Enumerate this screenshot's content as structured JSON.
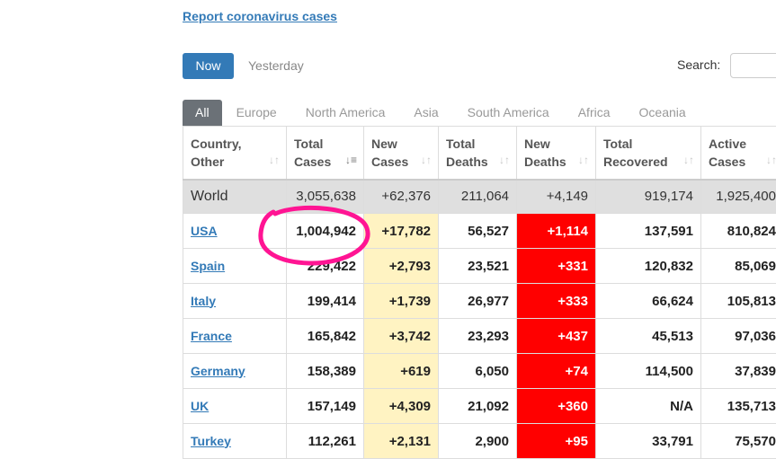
{
  "header": {
    "report_link": "Report coronavirus cases"
  },
  "toolbar": {
    "now_label": "Now",
    "yesterday_label": "Yesterday"
  },
  "search": {
    "label": "Search:",
    "value": "",
    "placeholder": ""
  },
  "tabs": [
    {
      "label": "All"
    },
    {
      "label": "Europe"
    },
    {
      "label": "North America"
    },
    {
      "label": "Asia"
    },
    {
      "label": "South America"
    },
    {
      "label": "Africa"
    },
    {
      "label": "Oceania"
    }
  ],
  "table": {
    "columns": [
      {
        "line1": "Country,",
        "line2": "Other"
      },
      {
        "line1": "Total",
        "line2": "Cases"
      },
      {
        "line1": "New",
        "line2": "Cases"
      },
      {
        "line1": "Total",
        "line2": "Deaths"
      },
      {
        "line1": "New",
        "line2": "Deaths"
      },
      {
        "line1": "Total",
        "line2": "Recovered"
      },
      {
        "line1": "Active",
        "line2": "Cases"
      }
    ],
    "world": [
      "World",
      "3,055,638",
      "+62,376",
      "211,064",
      "+4,149",
      "919,174",
      "1,925,400"
    ],
    "rows": [
      [
        "USA",
        "1,004,942",
        "+17,782",
        "56,527",
        "+1,114",
        "137,591",
        "810,824"
      ],
      [
        "Spain",
        "229,422",
        "+2,793",
        "23,521",
        "+331",
        "120,832",
        "85,069"
      ],
      [
        "Italy",
        "199,414",
        "+1,739",
        "26,977",
        "+333",
        "66,624",
        "105,813"
      ],
      [
        "France",
        "165,842",
        "+3,742",
        "23,293",
        "+437",
        "45,513",
        "97,036"
      ],
      [
        "Germany",
        "158,389",
        "+619",
        "6,050",
        "+74",
        "114,500",
        "37,839"
      ],
      [
        "UK",
        "157,149",
        "+4,309",
        "21,092",
        "+360",
        "N/A",
        "135,713"
      ],
      [
        "Turkey",
        "112,261",
        "+2,131",
        "2,900",
        "+95",
        "33,791",
        "75,570"
      ]
    ]
  },
  "colors": {
    "accent": "#337ab7",
    "new_cases_bg": "#fff3c2",
    "new_deaths_bg": "#ff0000",
    "annotation": "#ff1493"
  }
}
